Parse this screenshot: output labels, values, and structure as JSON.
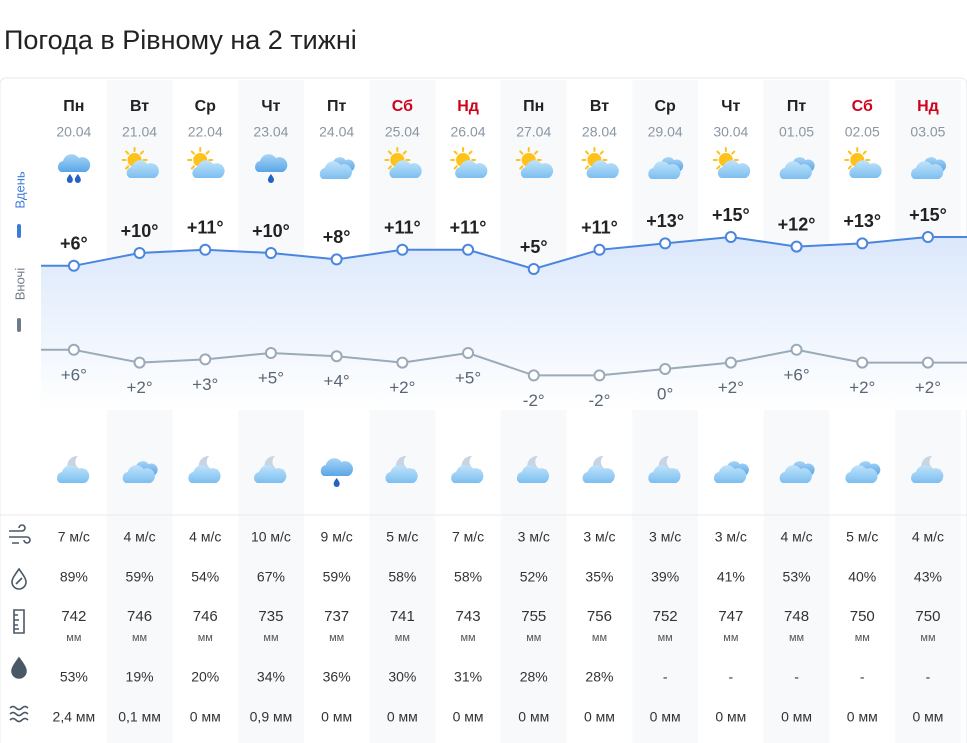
{
  "title": "Погода в Рівному на 2 тижні",
  "labels": {
    "day": "Вдень",
    "night": "Вночі"
  },
  "units": {
    "pressure": "мм"
  },
  "weekend_color": "#d0021b",
  "days": [
    {
      "name": "Пн",
      "date": "20.04",
      "weekend": false,
      "icon_day": "cloud-rain-2",
      "icon_night": "moon-cloud"
    },
    {
      "name": "Вт",
      "date": "21.04",
      "weekend": false,
      "icon_day": "sun-cloud",
      "icon_night": "clouds"
    },
    {
      "name": "Ср",
      "date": "22.04",
      "weekend": false,
      "icon_day": "sun-cloud",
      "icon_night": "moon-cloud"
    },
    {
      "name": "Чт",
      "date": "23.04",
      "weekend": false,
      "icon_day": "cloud-rain-1",
      "icon_night": "moon-cloud"
    },
    {
      "name": "Пт",
      "date": "24.04",
      "weekend": false,
      "icon_day": "clouds",
      "icon_night": "cloud-rain-1"
    },
    {
      "name": "Сб",
      "date": "25.04",
      "weekend": true,
      "icon_day": "sun-cloud",
      "icon_night": "moon-cloud"
    },
    {
      "name": "Нд",
      "date": "26.04",
      "weekend": true,
      "icon_day": "sun-cloud",
      "icon_night": "moon-cloud"
    },
    {
      "name": "Пн",
      "date": "27.04",
      "weekend": false,
      "icon_day": "sun-cloud",
      "icon_night": "moon-cloud"
    },
    {
      "name": "Вт",
      "date": "28.04",
      "weekend": false,
      "icon_day": "sun-cloud",
      "icon_night": "moon-cloud"
    },
    {
      "name": "Ср",
      "date": "29.04",
      "weekend": false,
      "icon_day": "clouds",
      "icon_night": "moon-cloud"
    },
    {
      "name": "Чт",
      "date": "30.04",
      "weekend": false,
      "icon_day": "sun-cloud",
      "icon_night": "clouds"
    },
    {
      "name": "Пт",
      "date": "01.05",
      "weekend": false,
      "icon_day": "clouds",
      "icon_night": "clouds"
    },
    {
      "name": "Сб",
      "date": "02.05",
      "weekend": true,
      "icon_day": "sun-cloud",
      "icon_night": "clouds"
    },
    {
      "name": "Нд",
      "date": "03.05",
      "weekend": true,
      "icon_day": "clouds",
      "icon_night": "moon-cloud"
    }
  ],
  "temperature": {
    "day": {
      "values": [
        6,
        10,
        11,
        10,
        8,
        11,
        11,
        5,
        11,
        13,
        15,
        12,
        13,
        15
      ],
      "labels": [
        "+6°",
        "+10°",
        "+11°",
        "+10°",
        "+8°",
        "+11°",
        "+11°",
        "+5°",
        "+11°",
        "+13°",
        "+15°",
        "+12°",
        "+13°",
        "+15°"
      ]
    },
    "night": {
      "values": [
        6,
        2,
        3,
        5,
        4,
        2,
        5,
        -2,
        -2,
        0,
        2,
        6,
        2,
        2
      ],
      "labels": [
        "+6°",
        "+2°",
        "+3°",
        "+5°",
        "+4°",
        "+2°",
        "+5°",
        "-2°",
        "-2°",
        "0°",
        "+2°",
        "+6°",
        "+2°",
        "+2°"
      ]
    }
  },
  "rows": {
    "wind": [
      "7 м/с",
      "4 м/с",
      "4 м/с",
      "10 м/с",
      "9 м/с",
      "5 м/с",
      "7 м/с",
      "3 м/с",
      "3 м/с",
      "3 м/с",
      "3 м/с",
      "4 м/с",
      "5 м/с",
      "4 м/с"
    ],
    "humidity": [
      "89%",
      "59%",
      "54%",
      "67%",
      "59%",
      "58%",
      "58%",
      "52%",
      "35%",
      "39%",
      "41%",
      "53%",
      "40%",
      "43%"
    ],
    "pressure": [
      "742",
      "746",
      "746",
      "735",
      "737",
      "741",
      "743",
      "755",
      "756",
      "752",
      "747",
      "748",
      "750",
      "750"
    ],
    "precip_probability": [
      "53%",
      "19%",
      "20%",
      "34%",
      "36%",
      "30%",
      "31%",
      "28%",
      "28%",
      "-",
      "-",
      "-",
      "-",
      "-"
    ],
    "precip": [
      "2,4 мм",
      "0,1 мм",
      "0 мм",
      "0,9 мм",
      "0 мм",
      "0 мм",
      "0 мм",
      "0 мм",
      "0 мм",
      "0 мм",
      "0 мм",
      "0 мм",
      "0 мм",
      "0 мм"
    ]
  }
}
